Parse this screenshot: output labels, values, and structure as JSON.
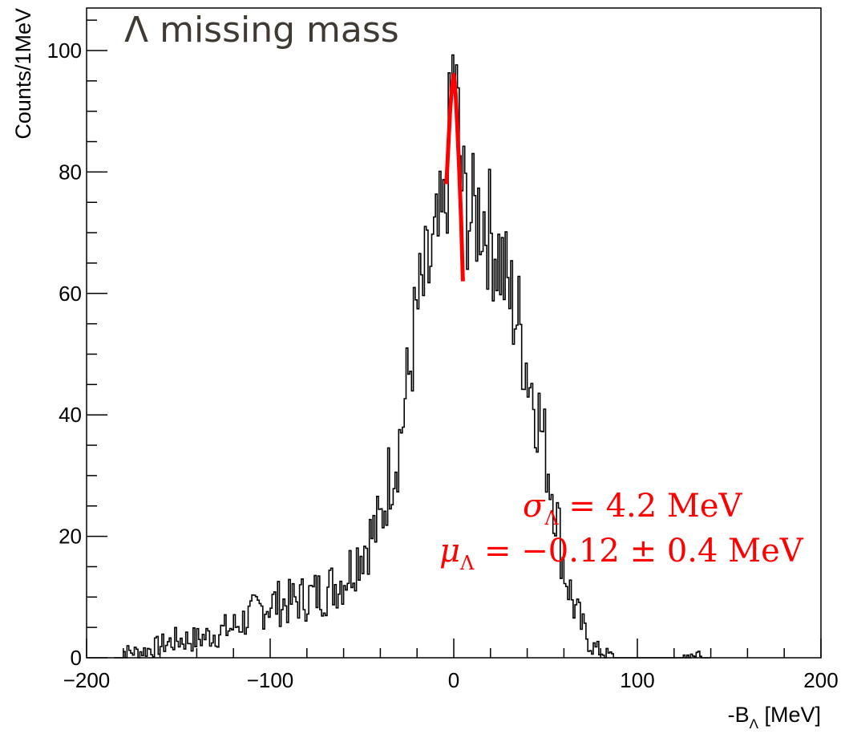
{
  "chart_data": {
    "type": "histogram",
    "title": "Λ missing mass",
    "xlabel": "-B",
    "xlabel_sub": "Λ",
    "xlabel_unit": " [MeV]",
    "ylabel": "Counts/1MeV",
    "xlim": [
      -200,
      200
    ],
    "ylim": [
      0,
      107
    ],
    "x_ticks": [
      -200,
      -100,
      0,
      100,
      200
    ],
    "x_tick_labels": [
      "−200",
      "−100",
      "0",
      "100",
      "200"
    ],
    "y_ticks": [
      0,
      20,
      40,
      60,
      80,
      100
    ],
    "y_tick_labels": [
      "0",
      "20",
      "40",
      "60",
      "80",
      "100"
    ],
    "grid": false,
    "bin_width": 1,
    "series": [
      {
        "color": "#000000",
        "x": [
          -180,
          -170,
          -160,
          -150,
          -140,
          -130,
          -120,
          -110,
          -100,
          -90,
          -80,
          -70,
          -60,
          -50,
          -40,
          -35,
          -30,
          -25,
          -20,
          -15,
          -10,
          -5,
          0,
          5,
          10,
          15,
          20,
          25,
          30,
          35,
          40,
          45,
          50,
          55,
          60,
          65,
          70,
          75,
          80,
          85,
          90,
          95,
          100,
          120,
          135
        ],
        "y": [
          1,
          1,
          2,
          3,
          3,
          4,
          5,
          7,
          9,
          9,
          10,
          11,
          13,
          18,
          22,
          30,
          35,
          45,
          57,
          62,
          67,
          72,
          98,
          76,
          72,
          74,
          70,
          66,
          60,
          56,
          48,
          42,
          34,
          26,
          15,
          9,
          5,
          2,
          1,
          0.5,
          0,
          0,
          0,
          0,
          1
        ]
      },
      {
        "color": "#ff0000",
        "fit": "gaussian",
        "x": [
          -4,
          -3,
          -2,
          -1,
          0,
          1,
          2,
          3,
          4,
          5
        ],
        "y": [
          78,
          84,
          90,
          94,
          96,
          93,
          87,
          80,
          72,
          62
        ]
      }
    ],
    "annotations": [
      {
        "name": "sigma",
        "symbol": "σ",
        "sub": "Λ",
        "rest": " = 4.2 MeV",
        "color": "#ff0000"
      },
      {
        "name": "mu",
        "symbol": "μ",
        "sub": "Λ",
        "rest": " = −0.12 ± 0.4 MeV",
        "color": "#ff0000"
      }
    ]
  }
}
